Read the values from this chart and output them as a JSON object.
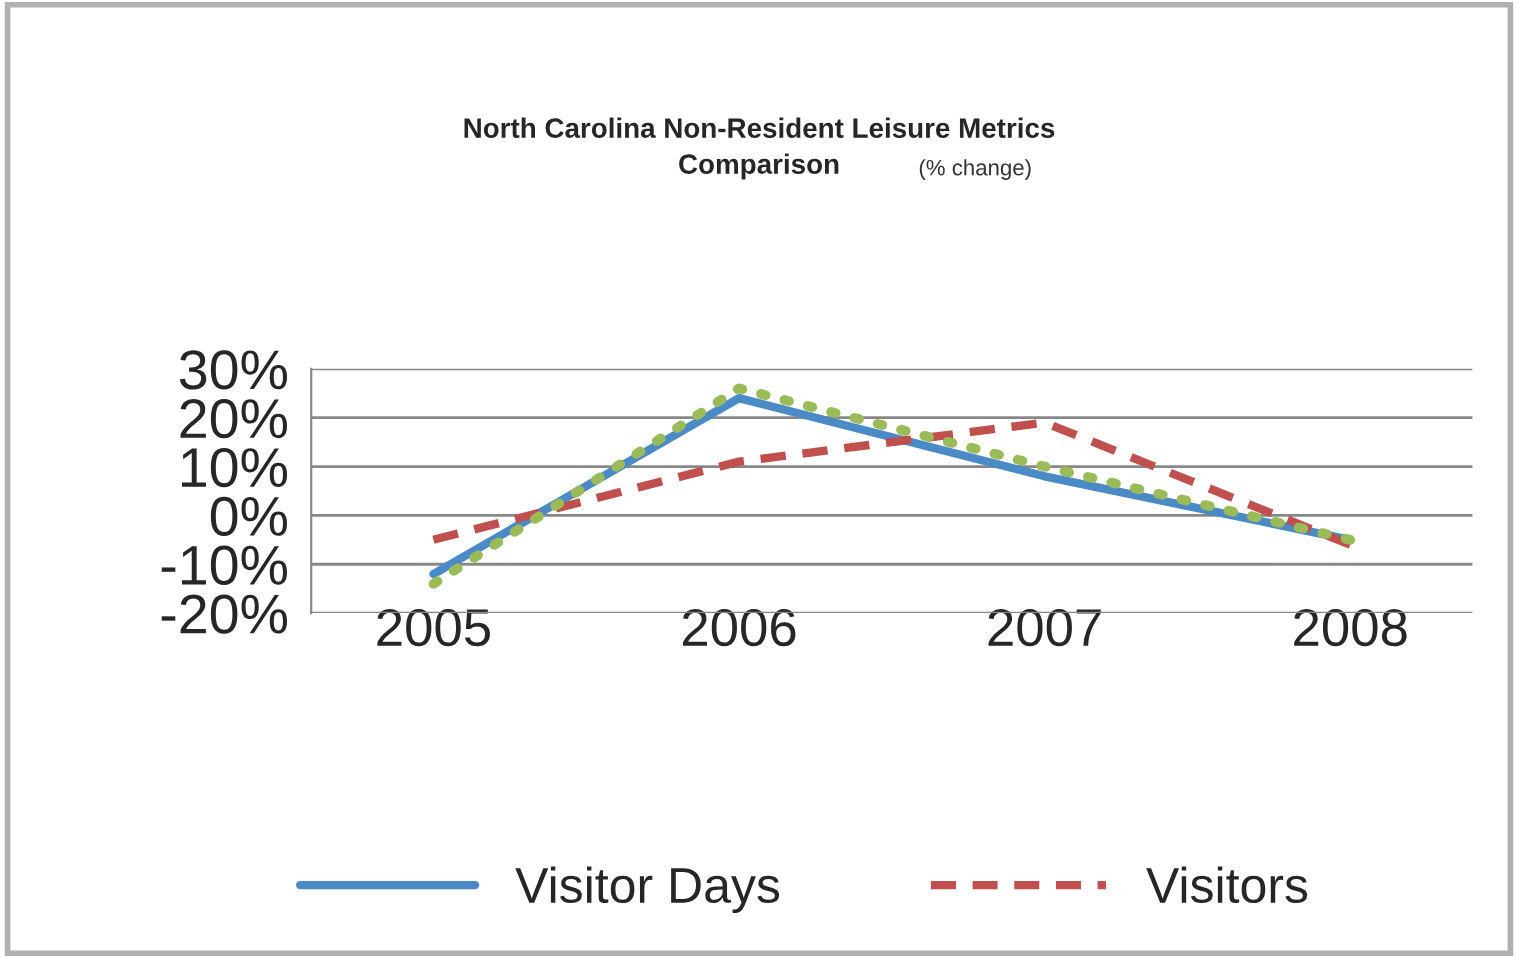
{
  "chart_data": {
    "type": "line",
    "title": "North Carolina Non-Resident Leisure Metrics\nComparison",
    "subtitle": "(% change)",
    "categories": [
      "2005",
      "2006",
      "2007",
      "2008"
    ],
    "series": [
      {
        "name": "Visitor Days",
        "color": "#4a8ac6",
        "line_style": "solid",
        "values": [
          -12,
          24,
          8,
          -5
        ]
      },
      {
        "name": "Visitors",
        "color": "#c0504d",
        "line_style": "dashed",
        "values": [
          -5,
          11,
          19,
          -6
        ]
      },
      {
        "color": "#9bbb59",
        "line_style": "dotted",
        "values": [
          -14,
          26,
          10,
          -5
        ]
      }
    ],
    "ylim": [
      -20,
      30
    ],
    "yticks": [
      {
        "value": -20,
        "label": "-20%"
      },
      {
        "value": -10,
        "label": "-10%"
      },
      {
        "value": 0,
        "label": "0%"
      },
      {
        "value": 10,
        "label": "10%"
      },
      {
        "value": 20,
        "label": "20%"
      },
      {
        "value": 30,
        "label": "30%"
      }
    ],
    "grid": "y",
    "legend": "bottom"
  }
}
